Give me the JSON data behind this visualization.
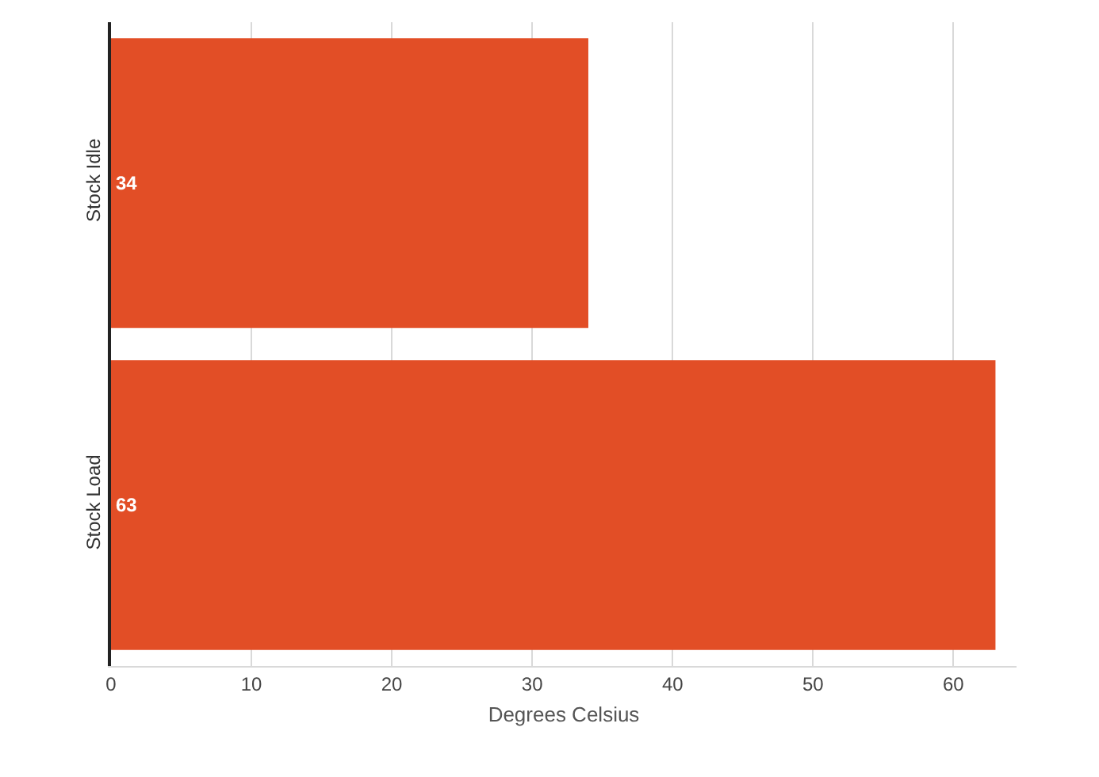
{
  "chart_data": {
    "type": "bar",
    "orientation": "horizontal",
    "xlabel": "Degrees Celsius",
    "categories": [
      "Stock Idle",
      "Stock Load"
    ],
    "values": [
      34,
      63
    ],
    "color": "#e24e26",
    "data_labels": true,
    "xlim": [
      0,
      64.5
    ],
    "xticks": [
      0,
      10,
      20,
      30,
      40,
      50,
      60
    ],
    "grid": "x"
  }
}
